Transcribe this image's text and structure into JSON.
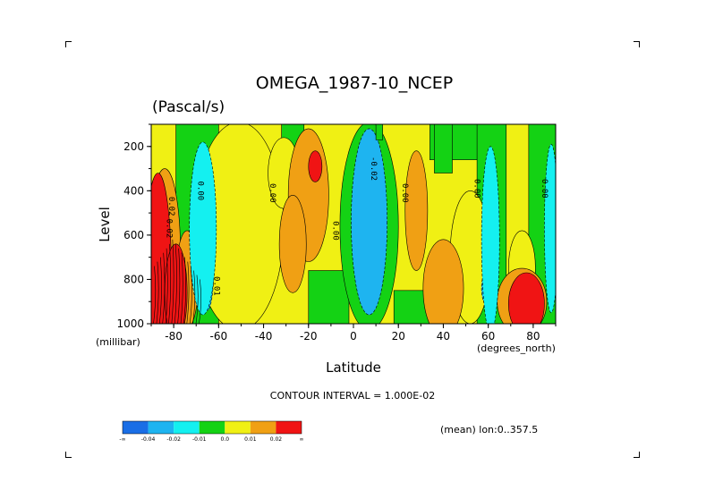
{
  "chart_data": {
    "type": "heatmap",
    "title": "OMEGA_1987-10_NCEP",
    "units": "(Pascal/s)",
    "xlabel": "Latitude",
    "ylabel": "Level",
    "x_unit": "(degrees_north)",
    "y_unit": "(millibar)",
    "xlim": [
      -90,
      90
    ],
    "ylim": [
      1000,
      100
    ],
    "x_ticks": [
      -80,
      -60,
      -40,
      -20,
      0,
      20,
      40,
      60,
      80
    ],
    "x_tick_labels": [
      "-80",
      "-60",
      "-40",
      "-20",
      "0",
      "20",
      "40",
      "60",
      "80"
    ],
    "y_ticks": [
      200,
      400,
      600,
      800,
      1000
    ],
    "y_tick_labels": [
      "200",
      "400",
      "600",
      "800",
      "1000"
    ],
    "contour_interval_text": "CONTOUR INTERVAL = 1.000E-02",
    "info_text": "(mean) lon:0..357.5",
    "contour_labels": [
      {
        "text": "0.00",
        "lat": -69,
        "lev": 400
      },
      {
        "text": "0.00",
        "lat": -37,
        "lev": 410
      },
      {
        "text": "0.00",
        "lat": -9,
        "lev": 580
      },
      {
        "text": "0.00",
        "lat": 22,
        "lev": 410
      },
      {
        "text": "-0.02",
        "lat": 8,
        "lev": 300
      },
      {
        "text": "0.00",
        "lat": 54,
        "lev": 390
      },
      {
        "text": "0.00",
        "lat": 84,
        "lev": 390
      },
      {
        "text": "0.02",
        "lat": -83,
        "lev": 570
      },
      {
        "text": "0.02",
        "lat": -82,
        "lev": 470
      },
      {
        "text": "0.01",
        "lat": -62,
        "lev": 830
      }
    ],
    "legend": {
      "colors": [
        "#1a6ee6",
        "#1eb4f0",
        "#14f0f0",
        "#14d214",
        "#f0f014",
        "#f0a014",
        "#f01414"
      ],
      "labels": [
        "-∞",
        "-0.04",
        "-0.02",
        "-0.01",
        "0.0",
        "0.01",
        "0.02",
        "∞"
      ]
    },
    "bands": {
      "-3": "#1a6ee6",
      "-2": "#1eb4f0",
      "-1": "#14f0f0",
      "0": "#14d214",
      "1": "#f0f014",
      "2": "#f0a014",
      "3": "#f01414"
    },
    "features": [
      {
        "type": "region",
        "band": 0,
        "lat": [
          -79,
          -55
        ],
        "lev": [
          100,
          1000
        ]
      },
      {
        "type": "region",
        "band": 1,
        "lat": [
          -60,
          -53
        ],
        "lev": [
          100,
          1000
        ]
      },
      {
        "type": "blob",
        "band": 1,
        "lat": -51,
        "lev": 560,
        "rlat": 20,
        "rlev": 470
      },
      {
        "type": "region",
        "band": 0,
        "lat": [
          -32,
          -22
        ],
        "lev": [
          100,
          340
        ]
      },
      {
        "type": "region",
        "band": 0,
        "lat": [
          -20,
          -2
        ],
        "lev": [
          760,
          1000
        ]
      },
      {
        "type": "blob",
        "band": 0,
        "lat": 7,
        "lev": 560,
        "rlat": 13,
        "rlev": 470
      },
      {
        "type": "region",
        "band": 0,
        "lat": [
          34,
          64
        ],
        "lev": [
          100,
          260
        ]
      },
      {
        "type": "region",
        "band": 0,
        "lat": [
          18,
          34
        ],
        "lev": [
          850,
          1000
        ]
      },
      {
        "type": "region",
        "band": 0,
        "lat": [
          55,
          68
        ],
        "lev": [
          100,
          1000
        ]
      },
      {
        "type": "region",
        "band": 0,
        "lat": [
          78,
          90
        ],
        "lev": [
          100,
          1000
        ]
      },
      {
        "type": "region",
        "band": 0,
        "lat": [
          36,
          44
        ],
        "lev": [
          100,
          320
        ]
      },
      {
        "type": "blob",
        "band": 1,
        "lat": -31,
        "lev": 320,
        "rlat": 7,
        "rlev": 160
      },
      {
        "type": "blob",
        "band": 1,
        "lat": 52,
        "lev": 700,
        "rlat": 9,
        "rlev": 300
      },
      {
        "type": "blob",
        "band": 1,
        "lat": 75,
        "lev": 750,
        "rlat": 6,
        "rlev": 170
      },
      {
        "type": "blob",
        "band": 2,
        "lat": -84,
        "lev": 680,
        "rlat": 7,
        "rlev": 380
      },
      {
        "type": "blob",
        "band": 2,
        "lat": -74,
        "lev": 800,
        "rlat": 5,
        "rlev": 220
      },
      {
        "type": "blob",
        "band": 2,
        "lat": -20,
        "lev": 420,
        "rlat": 9,
        "rlev": 300
      },
      {
        "type": "blob",
        "band": 2,
        "lat": -27,
        "lev": 640,
        "rlat": 6,
        "rlev": 220
      },
      {
        "type": "blob",
        "band": 2,
        "lat": 28,
        "lev": 490,
        "rlat": 5,
        "rlev": 270
      },
      {
        "type": "blob",
        "band": 2,
        "lat": 40,
        "lev": 840,
        "rlat": 9,
        "rlev": 220
      },
      {
        "type": "blob",
        "band": 2,
        "lat": 75,
        "lev": 900,
        "rlat": 11,
        "rlev": 150
      },
      {
        "type": "blob",
        "band": 3,
        "lat": -87,
        "lev": 780,
        "rlat": 6,
        "rlev": 460
      },
      {
        "type": "blob",
        "band": 3,
        "lat": -79,
        "lev": 860,
        "rlat": 5,
        "rlev": 220
      },
      {
        "type": "blob",
        "band": 3,
        "lat": -17,
        "lev": 290,
        "rlat": 3,
        "rlev": 70
      },
      {
        "type": "blob",
        "band": 3,
        "lat": 77,
        "lev": 910,
        "rlat": 8,
        "rlev": 140
      },
      {
        "type": "blob",
        "band": -2,
        "lat": 7,
        "lev": 540,
        "rlat": 8,
        "rlev": 420
      },
      {
        "type": "blob",
        "band": -2,
        "lat": -65,
        "lev": 720,
        "rlat": 3,
        "rlev": 220
      },
      {
        "type": "blob",
        "band": -2,
        "lat": 59,
        "lev": 840,
        "rlat": 2,
        "rlev": 70
      },
      {
        "type": "blob",
        "band": -2,
        "lat": 89,
        "lev": 560,
        "rlat": 2,
        "rlev": 320
      },
      {
        "type": "blob",
        "band": -1,
        "lat": -67,
        "lev": 570,
        "rlat": 6,
        "rlev": 390
      },
      {
        "type": "blob",
        "band": -1,
        "lat": 61,
        "lev": 620,
        "rlat": 4,
        "rlev": 420
      },
      {
        "type": "blob",
        "band": -1,
        "lat": 88,
        "lev": 570,
        "rlat": 3,
        "rlev": 380
      },
      {
        "type": "region",
        "band": 0,
        "lat": [
          10,
          13
        ],
        "lev": [
          100,
          170
        ]
      }
    ]
  }
}
